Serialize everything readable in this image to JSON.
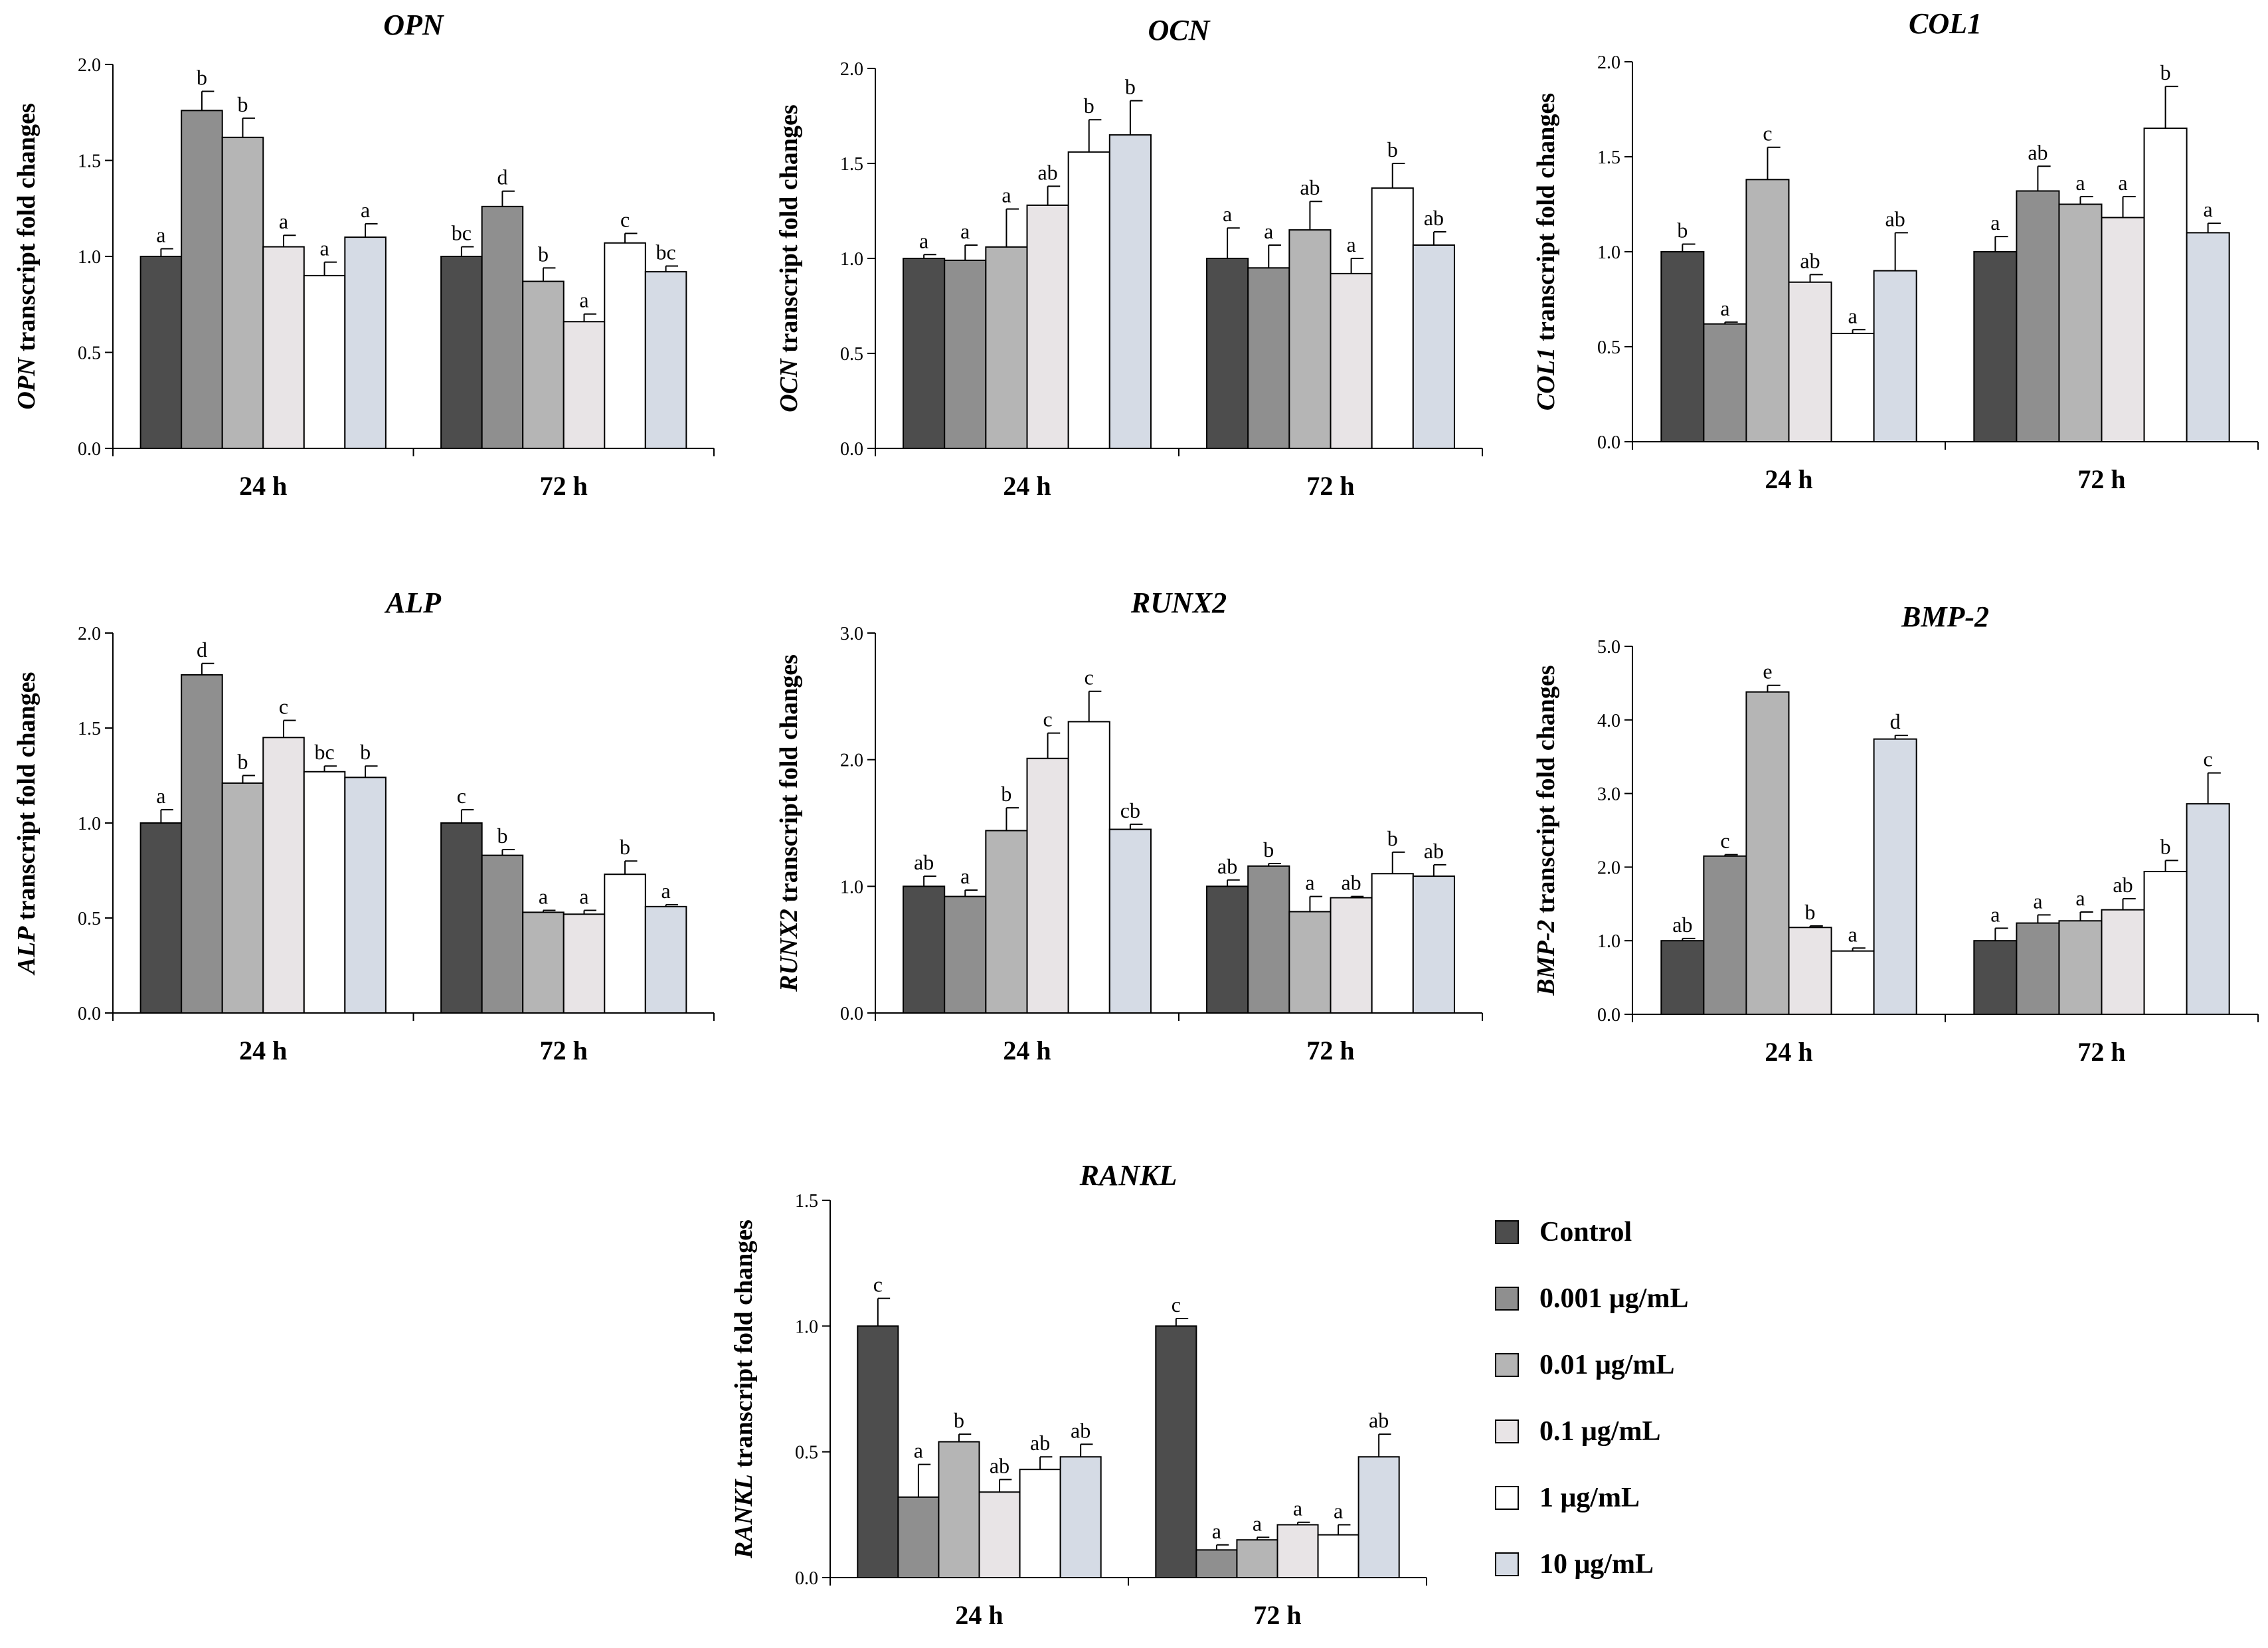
{
  "legend": {
    "items": [
      {
        "label": "Control",
        "color": "#4d4d4d"
      },
      {
        "label": "0.001 μg/mL",
        "color": "#8f8f8f"
      },
      {
        "label": "0.01 μg/mL",
        "color": "#b5b5b5"
      },
      {
        "label": "0.1 μg/mL",
        "color": "#e8e4e6"
      },
      {
        "label": "1 μg/mL",
        "color": "#ffffff"
      },
      {
        "label": "10 μg/mL",
        "color": "#d5dbe5"
      }
    ]
  },
  "chart_data": [
    {
      "type": "bar",
      "title": "OPN",
      "ylabel_gene": "OPN",
      "ylabel_rest": " transcript fold changes",
      "categories": [
        "24 h",
        "72 h"
      ],
      "ylim": [
        0,
        2.0
      ],
      "yticks": [
        0.0,
        0.5,
        1.0,
        1.5,
        2.0
      ],
      "tick_decimals": 1,
      "series": [
        {
          "name": "Control",
          "values": [
            1.0,
            1.0
          ],
          "errors": [
            0.04,
            0.05
          ],
          "letters": [
            "a",
            "bc"
          ]
        },
        {
          "name": "0.001 μg/mL",
          "values": [
            1.76,
            1.26
          ],
          "errors": [
            0.1,
            0.08
          ],
          "letters": [
            "b",
            "d"
          ]
        },
        {
          "name": "0.01 μg/mL",
          "values": [
            1.62,
            0.87
          ],
          "errors": [
            0.1,
            0.07
          ],
          "letters": [
            "b",
            "b"
          ]
        },
        {
          "name": "0.1 μg/mL",
          "values": [
            1.05,
            0.66
          ],
          "errors": [
            0.06,
            0.04
          ],
          "letters": [
            "a",
            "a"
          ]
        },
        {
          "name": "1 μg/mL",
          "values": [
            0.9,
            1.07
          ],
          "errors": [
            0.07,
            0.05
          ],
          "letters": [
            "a",
            "c"
          ]
        },
        {
          "name": "10 μg/mL",
          "values": [
            1.1,
            0.92
          ],
          "errors": [
            0.07,
            0.03
          ],
          "letters": [
            "a",
            "bc"
          ]
        }
      ]
    },
    {
      "type": "bar",
      "title": "OCN",
      "ylabel_gene": "OCN",
      "ylabel_rest": " transcript fold changes",
      "categories": [
        "24 h",
        "72 h"
      ],
      "ylim": [
        0,
        2.0
      ],
      "yticks": [
        0.0,
        0.5,
        1.0,
        1.5,
        2.0
      ],
      "tick_decimals": 1,
      "series": [
        {
          "name": "Control",
          "values": [
            1.0,
            1.0
          ],
          "errors": [
            0.02,
            0.16
          ],
          "letters": [
            "a",
            "a"
          ]
        },
        {
          "name": "0.001 μg/mL",
          "values": [
            0.99,
            0.95
          ],
          "errors": [
            0.08,
            0.12
          ],
          "letters": [
            "a",
            "a"
          ]
        },
        {
          "name": "0.01 μg/mL",
          "values": [
            1.06,
            1.15
          ],
          "errors": [
            0.2,
            0.15
          ],
          "letters": [
            "a",
            "ab"
          ]
        },
        {
          "name": "0.1 μg/mL",
          "values": [
            1.28,
            0.92
          ],
          "errors": [
            0.1,
            0.08
          ],
          "letters": [
            "ab",
            "a"
          ]
        },
        {
          "name": "1 μg/mL",
          "values": [
            1.56,
            1.37
          ],
          "errors": [
            0.17,
            0.13
          ],
          "letters": [
            "b",
            "b"
          ]
        },
        {
          "name": "10 μg/mL",
          "values": [
            1.65,
            1.07
          ],
          "errors": [
            0.18,
            0.07
          ],
          "letters": [
            "b",
            "ab"
          ]
        }
      ]
    },
    {
      "type": "bar",
      "title": "COL1",
      "ylabel_gene": "COL1",
      "ylabel_rest": " transcript fold changes",
      "categories": [
        "24 h",
        "72 h"
      ],
      "ylim": [
        0,
        2.0
      ],
      "yticks": [
        0.0,
        0.5,
        1.0,
        1.5,
        2.0
      ],
      "tick_decimals": 1,
      "series": [
        {
          "name": "Control",
          "values": [
            1.0,
            1.0
          ],
          "errors": [
            0.04,
            0.08
          ],
          "letters": [
            "b",
            "a"
          ]
        },
        {
          "name": "0.001 μg/mL",
          "values": [
            0.62,
            1.32
          ],
          "errors": [
            0.01,
            0.13
          ],
          "letters": [
            "a",
            "ab"
          ]
        },
        {
          "name": "0.01 μg/mL",
          "values": [
            1.38,
            1.25
          ],
          "errors": [
            0.17,
            0.04
          ],
          "letters": [
            "c",
            "a"
          ]
        },
        {
          "name": "0.1 μg/mL",
          "values": [
            0.84,
            1.18
          ],
          "errors": [
            0.04,
            0.11
          ],
          "letters": [
            "ab",
            "a"
          ]
        },
        {
          "name": "1 μg/mL",
          "values": [
            0.57,
            1.65
          ],
          "errors": [
            0.02,
            0.22
          ],
          "letters": [
            "a",
            "b"
          ]
        },
        {
          "name": "10 μg/mL",
          "values": [
            0.9,
            1.1
          ],
          "errors": [
            0.2,
            0.05
          ],
          "letters": [
            "ab",
            "a"
          ]
        }
      ]
    },
    {
      "type": "bar",
      "title": "ALP",
      "ylabel_gene": "ALP",
      "ylabel_rest": " transcript fold changes",
      "categories": [
        "24 h",
        "72 h"
      ],
      "ylim": [
        0,
        2.0
      ],
      "yticks": [
        0.0,
        0.5,
        1.0,
        1.5,
        2.0
      ],
      "tick_decimals": 1,
      "series": [
        {
          "name": "Control",
          "values": [
            1.0,
            1.0
          ],
          "errors": [
            0.07,
            0.07
          ],
          "letters": [
            "a",
            "c"
          ]
        },
        {
          "name": "0.001 μg/mL",
          "values": [
            1.78,
            0.83
          ],
          "errors": [
            0.06,
            0.03
          ],
          "letters": [
            "d",
            "b"
          ]
        },
        {
          "name": "0.01 μg/mL",
          "values": [
            1.21,
            0.53
          ],
          "errors": [
            0.04,
            0.01
          ],
          "letters": [
            "b",
            "a"
          ]
        },
        {
          "name": "0.1 μg/mL",
          "values": [
            1.45,
            0.52
          ],
          "errors": [
            0.09,
            0.02
          ],
          "letters": [
            "c",
            "a"
          ]
        },
        {
          "name": "1 μg/mL",
          "values": [
            1.27,
            0.73
          ],
          "errors": [
            0.03,
            0.07
          ],
          "letters": [
            "bc",
            "b"
          ]
        },
        {
          "name": "10 μg/mL",
          "values": [
            1.24,
            0.56
          ],
          "errors": [
            0.06,
            0.01
          ],
          "letters": [
            "b",
            "a"
          ]
        }
      ]
    },
    {
      "type": "bar",
      "title": "RUNX2",
      "ylabel_gene": "RUNX2",
      "ylabel_rest": " transcript fold changes",
      "categories": [
        "24 h",
        "72 h"
      ],
      "ylim": [
        0,
        3.0
      ],
      "yticks": [
        0.0,
        1.0,
        2.0,
        3.0
      ],
      "tick_decimals": 1,
      "series": [
        {
          "name": "Control",
          "values": [
            1.0,
            1.0
          ],
          "errors": [
            0.08,
            0.05
          ],
          "letters": [
            "ab",
            "ab"
          ]
        },
        {
          "name": "0.001 μg/mL",
          "values": [
            0.92,
            1.16
          ],
          "errors": [
            0.05,
            0.02
          ],
          "letters": [
            "a",
            "b"
          ]
        },
        {
          "name": "0.01 μg/mL",
          "values": [
            1.44,
            0.8
          ],
          "errors": [
            0.18,
            0.12
          ],
          "letters": [
            "b",
            "a"
          ]
        },
        {
          "name": "0.1 μg/mL",
          "values": [
            2.01,
            0.91
          ],
          "errors": [
            0.2,
            0.01
          ],
          "letters": [
            "c",
            "ab"
          ]
        },
        {
          "name": "1 μg/mL",
          "values": [
            2.3,
            1.1
          ],
          "errors": [
            0.24,
            0.17
          ],
          "letters": [
            "c",
            "b"
          ]
        },
        {
          "name": "10 μg/mL",
          "values": [
            1.45,
            1.08
          ],
          "errors": [
            0.04,
            0.09
          ],
          "letters": [
            "cb",
            "ab"
          ]
        }
      ]
    },
    {
      "type": "bar",
      "title": "BMP-2",
      "ylabel_gene": "BMP-2",
      "ylabel_rest": " transcript fold changes",
      "categories": [
        "24 h",
        "72 h"
      ],
      "ylim": [
        0,
        5.0
      ],
      "yticks": [
        0.0,
        1.0,
        2.0,
        3.0,
        4.0,
        5.0
      ],
      "tick_decimals": 1,
      "series": [
        {
          "name": "Control",
          "values": [
            1.0,
            1.0
          ],
          "errors": [
            0.03,
            0.17
          ],
          "letters": [
            "ab",
            "a"
          ]
        },
        {
          "name": "0.001 μg/mL",
          "values": [
            2.15,
            1.24
          ],
          "errors": [
            0.02,
            0.11
          ],
          "letters": [
            "c",
            "a"
          ]
        },
        {
          "name": "0.01 μg/mL",
          "values": [
            4.38,
            1.27
          ],
          "errors": [
            0.09,
            0.12
          ],
          "letters": [
            "e",
            "a"
          ]
        },
        {
          "name": "0.1 μg/mL",
          "values": [
            1.18,
            1.42
          ],
          "errors": [
            0.02,
            0.15
          ],
          "letters": [
            "b",
            "ab"
          ]
        },
        {
          "name": "1 μg/mL",
          "values": [
            0.86,
            1.94
          ],
          "errors": [
            0.04,
            0.15
          ],
          "letters": [
            "a",
            "b"
          ]
        },
        {
          "name": "10 μg/mL",
          "values": [
            3.74,
            2.86
          ],
          "errors": [
            0.05,
            0.42
          ],
          "letters": [
            "d",
            "c"
          ]
        }
      ]
    },
    {
      "type": "bar",
      "title": "RANKL",
      "ylabel_gene": "RANKL",
      "ylabel_rest": " transcript fold changes",
      "categories": [
        "24 h",
        "72 h"
      ],
      "ylim": [
        0,
        1.5
      ],
      "yticks": [
        0.0,
        0.5,
        1.0,
        1.5
      ],
      "tick_decimals": 1,
      "series": [
        {
          "name": "Control",
          "values": [
            1.0,
            1.0
          ],
          "errors": [
            0.11,
            0.03
          ],
          "letters": [
            "c",
            "c"
          ]
        },
        {
          "name": "0.001 μg/mL",
          "values": [
            0.32,
            0.11
          ],
          "errors": [
            0.13,
            0.02
          ],
          "letters": [
            "a",
            "a"
          ]
        },
        {
          "name": "0.01 μg/mL",
          "values": [
            0.54,
            0.15
          ],
          "errors": [
            0.03,
            0.01
          ],
          "letters": [
            "b",
            "a"
          ]
        },
        {
          "name": "0.1 μg/mL",
          "values": [
            0.34,
            0.21
          ],
          "errors": [
            0.05,
            0.01
          ],
          "letters": [
            "ab",
            "a"
          ]
        },
        {
          "name": "1 μg/mL",
          "values": [
            0.43,
            0.17
          ],
          "errors": [
            0.05,
            0.04
          ],
          "letters": [
            "ab",
            "a"
          ]
        },
        {
          "name": "10 μg/mL",
          "values": [
            0.48,
            0.48
          ],
          "errors": [
            0.05,
            0.09
          ],
          "letters": [
            "ab",
            "ab"
          ]
        }
      ]
    }
  ]
}
